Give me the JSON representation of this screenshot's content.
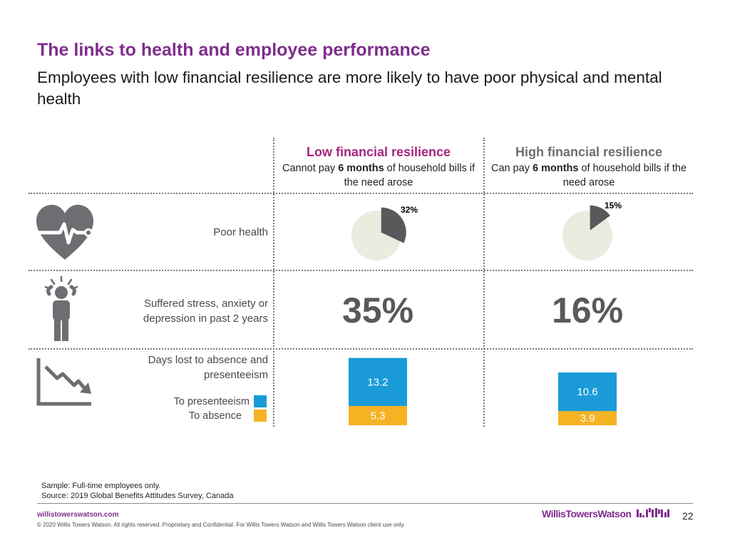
{
  "title": "The links to health and employee performance",
  "subtitle": "Employees with low financial resilience are more likely to have poor physical and mental health",
  "columns": [
    {
      "heading": "Low financial resilience",
      "heading_color": "#a4267f",
      "desc_pre": "Cannot pay ",
      "desc_bold": "6 months",
      "desc_post": " of household bills if the need arose"
    },
    {
      "heading": "High financial resilience",
      "heading_color": "#6d6e71",
      "desc_pre": "Can pay ",
      "desc_bold": "6 months",
      "desc_post": " of household bills if the need arose"
    }
  ],
  "rows": {
    "poor_health": {
      "label": "Poor health",
      "icon": "heart-pulse-icon"
    },
    "stress": {
      "label": "Suffered stress, anxiety or depression in past 2 years",
      "icon": "stressed-person-icon"
    },
    "days_lost": {
      "label": "Days lost to absence and presenteeism",
      "icon": "declining-chart-icon"
    }
  },
  "colors": {
    "pie_fill": "#58595b",
    "pie_rest": "#ecebe0",
    "presenteeism": "#1a9bd7",
    "absence": "#f5b324",
    "purple": "#7f2d8c"
  },
  "chart_data": [
    {
      "type": "pie",
      "name": "poor-health-low",
      "slices": [
        {
          "label": "32%",
          "value": 32
        },
        {
          "label": "",
          "value": 68
        }
      ]
    },
    {
      "type": "pie",
      "name": "poor-health-high",
      "slices": [
        {
          "label": "15%",
          "value": 15
        },
        {
          "label": "",
          "value": 85
        }
      ]
    },
    {
      "type": "table",
      "name": "stress",
      "values": [
        "35%",
        "16%"
      ]
    },
    {
      "type": "bar",
      "stacked": true,
      "categories": [
        "Low financial resilience",
        "High financial resilience"
      ],
      "series": [
        {
          "name": "To presenteeism",
          "values": [
            13.2,
            10.6
          ]
        },
        {
          "name": "To absence",
          "values": [
            5.3,
            3.9
          ]
        }
      ]
    }
  ],
  "legend": {
    "presenteeism": "To presenteeism",
    "absence": "To absence"
  },
  "notes": {
    "sample": "Sample: Full-time employees only.",
    "source": "Source: 2019 Global Benefits Attitudes Survey, Canada"
  },
  "footer": {
    "site": "willistowerswatson.com",
    "copyright": "© 2020 Willis Towers Watson. All rights reserved. Proprietary and Confidential. For Willis Towers Watson and Willis Towers Watson client use only.",
    "brand": "WillisTowersWatson",
    "page": "22"
  }
}
